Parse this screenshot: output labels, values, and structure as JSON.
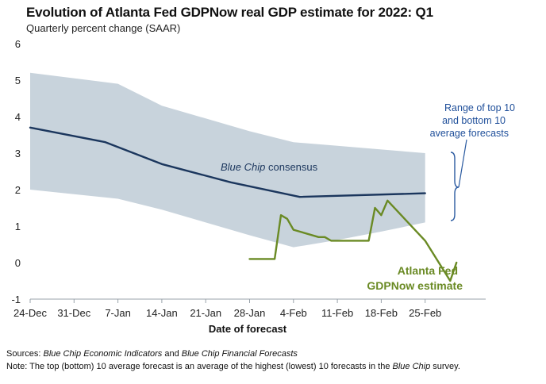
{
  "title": "Evolution of Atlanta Fed GDPNow real GDP estimate for 2022: Q1",
  "subtitle": "Quarterly percent change (SAAR)",
  "chart_data": {
    "type": "line",
    "xlabel": "Date of forecast",
    "ylabel": "Quarterly percent change (SAAR)",
    "ylim": [
      -1,
      6
    ],
    "yticks": [
      "6",
      "5",
      "4",
      "3",
      "2",
      "1",
      "0",
      "-1"
    ],
    "xticks": [
      "24-Dec",
      "31-Dec",
      "7-Jan",
      "14-Jan",
      "21-Jan",
      "28-Jan",
      "4-Feb",
      "11-Feb",
      "18-Feb",
      "25-Feb"
    ],
    "x_axis_note": "x values are days since 24-Dec",
    "range_band": {
      "name": "Range of top 10 and bottom 10 average forecasts",
      "x": [
        0,
        14,
        21,
        35,
        42,
        49,
        56,
        63
      ],
      "upper": [
        5.2,
        4.9,
        4.3,
        3.6,
        3.3,
        3.2,
        3.1,
        3.0
      ],
      "lower": [
        2.0,
        1.75,
        1.45,
        0.75,
        0.42,
        0.62,
        0.85,
        1.1
      ]
    },
    "series": [
      {
        "name": "Blue Chip consensus",
        "x": [
          0,
          12,
          21,
          32,
          43,
          63
        ],
        "values": [
          3.7,
          3.3,
          2.7,
          2.2,
          1.8,
          1.9
        ]
      },
      {
        "name": "Atlanta Fed GDPNow estimate",
        "x": [
          35,
          39,
          40,
          41,
          42,
          46,
          47,
          48,
          54,
          55,
          56,
          57,
          63,
          67,
          68
        ],
        "values": [
          0.1,
          0.1,
          1.3,
          1.2,
          0.9,
          0.7,
          0.7,
          0.6,
          0.6,
          1.5,
          1.3,
          1.7,
          0.6,
          -0.5,
          0.0
        ]
      }
    ],
    "annotations": {
      "blue_chip_label_italic": "Blue Chip",
      "blue_chip_label_rest": " consensus",
      "range_line1": "Range of top 10",
      "range_line2": "and bottom 10",
      "range_line3": "average forecasts",
      "gdpnow_line1": "Atlanta Fed",
      "gdpnow_line2": "GDPNow estimate"
    }
  },
  "colors": {
    "band": "#c8d3dc",
    "consensus": "#1b365d",
    "gdpnow": "#6a8a24",
    "bracket": "#2a5aa0",
    "axis": "#9aa3ab"
  },
  "notes": {
    "sources_label": "Sources:",
    "sources_italic1": "Blue Chip Economic Indicators",
    "sources_and": " and ",
    "sources_italic2": "Blue Chip Financial Forecasts",
    "note_label": "Note:",
    "note_text1": " The top (bottom) 10 average forecast is an average of the highest (lowest) 10 forecasts in the ",
    "note_italic": "Blue Chip",
    "note_text2": " survey."
  }
}
